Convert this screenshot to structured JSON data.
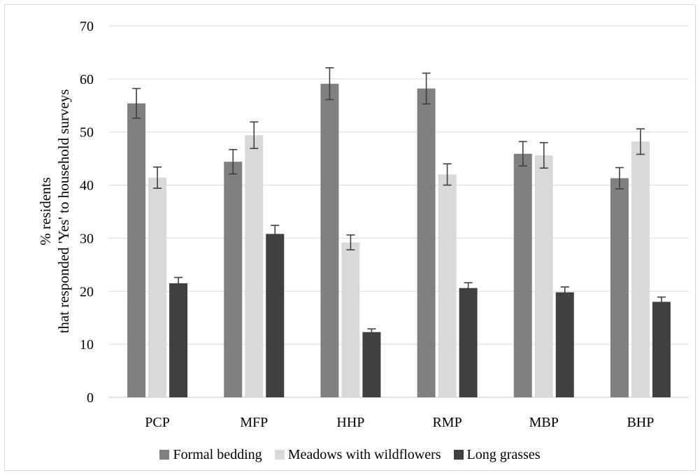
{
  "chart_data": {
    "type": "bar",
    "ylabel_lines": [
      "% residents",
      "that responded 'Yes' to household surveys"
    ],
    "xlabel": "",
    "ylim": [
      0,
      70
    ],
    "yticks": [
      0,
      10,
      20,
      30,
      40,
      50,
      60,
      70
    ],
    "grid": true,
    "legend_position": "bottom",
    "categories": [
      "PCP",
      "MFP",
      "HHP",
      "RMP",
      "MBP",
      "BHP"
    ],
    "series": [
      {
        "name": "Formal bedding",
        "color": "#808080",
        "values": [
          55.4,
          44.4,
          59.1,
          58.2,
          45.9,
          41.3
        ],
        "errors": [
          2.8,
          2.3,
          3.0,
          2.9,
          2.3,
          2.0
        ]
      },
      {
        "name": "Meadows with wildflowers",
        "color": "#d9d9d9",
        "values": [
          41.4,
          49.4,
          29.2,
          42.0,
          45.6,
          48.2
        ],
        "errors": [
          2.0,
          2.5,
          1.4,
          2.0,
          2.4,
          2.4
        ]
      },
      {
        "name": "Long grasses",
        "color": "#404040",
        "values": [
          21.5,
          30.8,
          12.3,
          20.6,
          19.8,
          18.0
        ],
        "errors": [
          1.1,
          1.6,
          0.6,
          1.0,
          1.0,
          0.9
        ]
      }
    ]
  }
}
